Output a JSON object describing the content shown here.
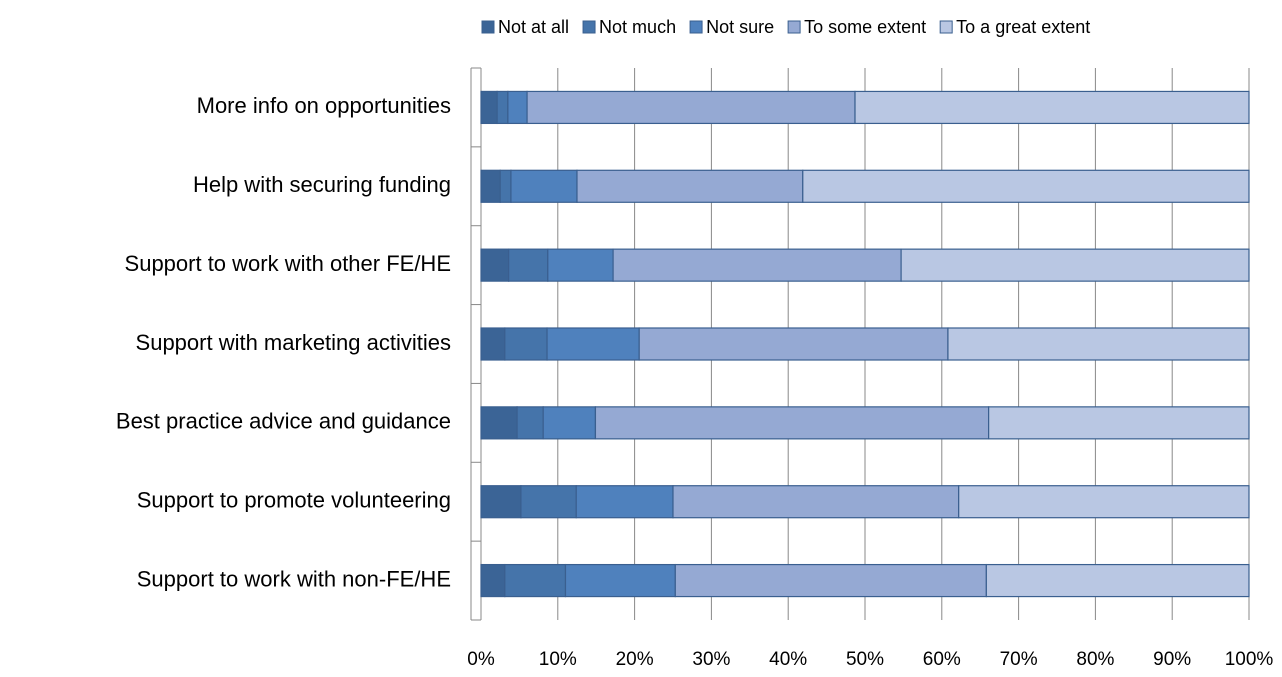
{
  "chart_data": {
    "type": "stacked_bar_horizontal",
    "categories": [
      "More info on opportunities",
      "Help with securing funding",
      "Support to work with other FE/HE",
      "Support with marketing activities",
      "Best practice advice and guidance",
      "Support to promote volunteering",
      "Support to work with non-FE/HE"
    ],
    "series": [
      {
        "name": "Not at all",
        "color": "#3b6496",
        "values": [
          2.1,
          2.5,
          3.6,
          3.1,
          4.7,
          5.2,
          3.1
        ]
      },
      {
        "name": "Not much",
        "color": "#4574aa",
        "values": [
          1.4,
          1.4,
          5.1,
          5.5,
          3.4,
          7.2,
          7.9
        ]
      },
      {
        "name": "Not sure",
        "color": "#4f81bd",
        "values": [
          2.5,
          8.6,
          8.5,
          12.0,
          6.8,
          12.6,
          14.3
        ]
      },
      {
        "name": "To some extent",
        "color": "#95a9d3",
        "values": [
          42.7,
          29.4,
          37.5,
          40.2,
          51.2,
          37.2,
          40.5
        ]
      },
      {
        "name": "To a great extent",
        "color": "#b9c7e3",
        "values": [
          51.3,
          58.1,
          45.3,
          39.2,
          33.9,
          37.8,
          34.2
        ]
      }
    ],
    "xlim": [
      0,
      100
    ],
    "xticks": [
      {
        "value": 0,
        "label": "0%"
      },
      {
        "value": 10,
        "label": "10%"
      },
      {
        "value": 20,
        "label": "20%"
      },
      {
        "value": 30,
        "label": "30%"
      },
      {
        "value": 40,
        "label": "40%"
      },
      {
        "value": 50,
        "label": "50%"
      },
      {
        "value": 60,
        "label": "60%"
      },
      {
        "value": 70,
        "label": "70%"
      },
      {
        "value": 80,
        "label": "80%"
      },
      {
        "value": 90,
        "label": "90%"
      },
      {
        "value": 100,
        "label": "100%"
      }
    ],
    "grid": true,
    "legend": "top"
  }
}
